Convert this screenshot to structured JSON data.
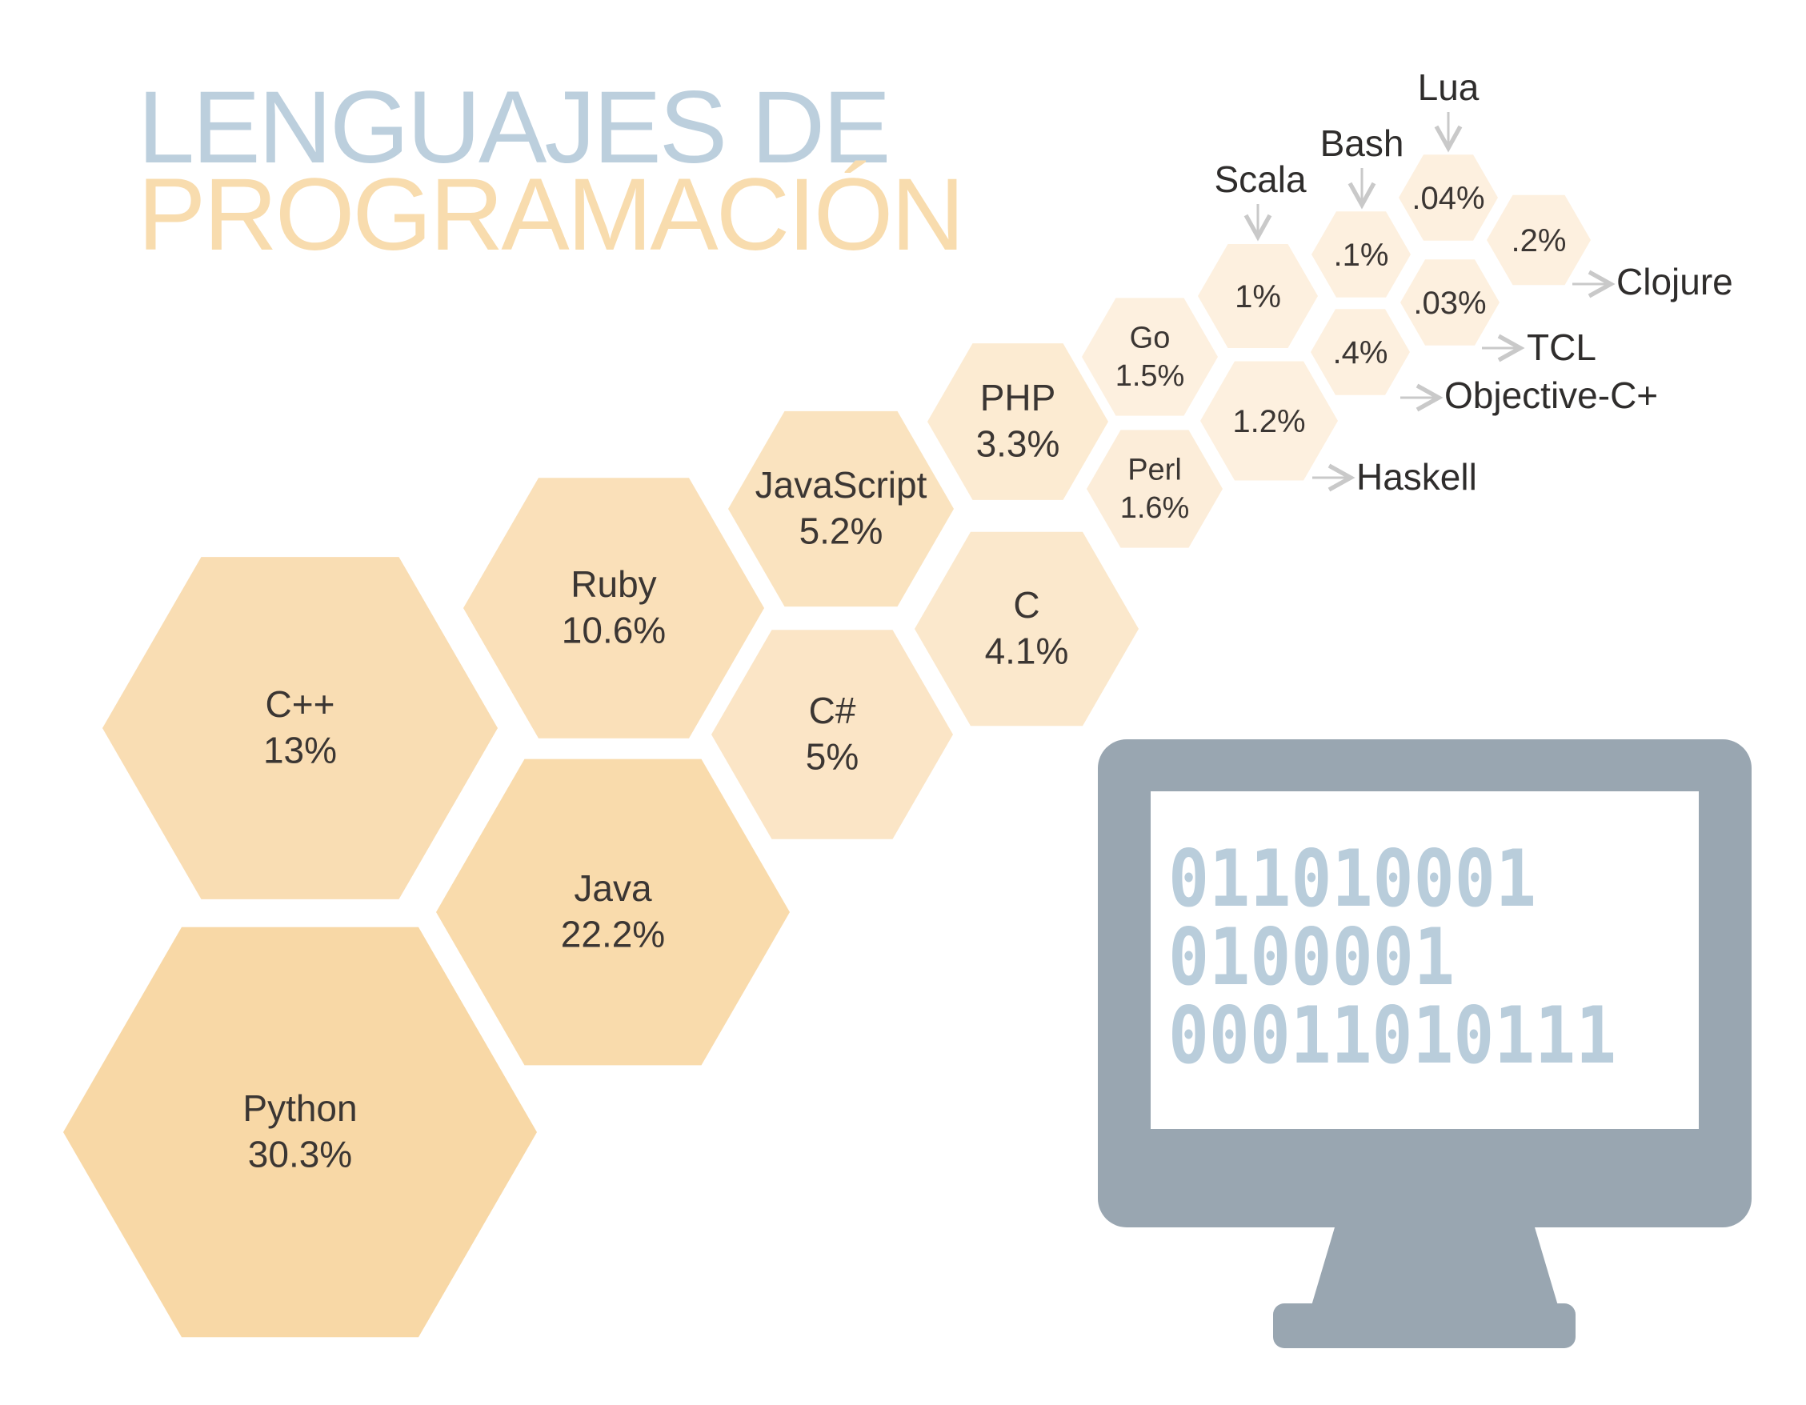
{
  "title": {
    "line1": "LENGUAJES DE",
    "line2": "PROGRAMACIÓN"
  },
  "colors": {
    "title_line1": "#bccfdd",
    "title_line2": "#f8dcae",
    "hex_fill_strong": "#f8d8a6",
    "hex_fill_light": "#fdf0df",
    "monitor": "#99a6b1",
    "screen": "#ffffff",
    "code_text": "#b9cddb",
    "arrow": "#c9c9c9"
  },
  "chart_data": {
    "type": "hexagon-bubble",
    "unit": "%",
    "series": [
      {
        "label": "Python",
        "value": 30.3,
        "display": "30.3%"
      },
      {
        "label": "Java",
        "value": 22.2,
        "display": "22.2%"
      },
      {
        "label": "C++",
        "value": 13,
        "display": "13%"
      },
      {
        "label": "Ruby",
        "value": 10.6,
        "display": "10.6%"
      },
      {
        "label": "JavaScript",
        "value": 5.2,
        "display": "5.2%"
      },
      {
        "label": "C#",
        "value": 5,
        "display": "5%"
      },
      {
        "label": "C",
        "value": 4.1,
        "display": "4.1%"
      },
      {
        "label": "PHP",
        "value": 3.3,
        "display": "3.3%"
      },
      {
        "label": "Perl",
        "value": 1.6,
        "display": "1.6%"
      },
      {
        "label": "Go",
        "value": 1.5,
        "display": "1.5%"
      },
      {
        "label": "Haskell",
        "value": 1.2,
        "display": "1.2%"
      },
      {
        "label": "Scala",
        "value": 1,
        "display": "1%"
      },
      {
        "label": "Objective-C+",
        "value": 0.4,
        "display": ".4%"
      },
      {
        "label": "Clojure",
        "value": 0.2,
        "display": ".2%"
      },
      {
        "label": "Bash",
        "value": 0.1,
        "display": ".1%"
      },
      {
        "label": "Lua",
        "value": 0.04,
        "display": ".04%"
      },
      {
        "label": "TCL",
        "value": 0.03,
        "display": ".03%"
      }
    ]
  },
  "monitor": {
    "code_lines": [
      "011010001",
      "0100001",
      "00011010111"
    ]
  }
}
